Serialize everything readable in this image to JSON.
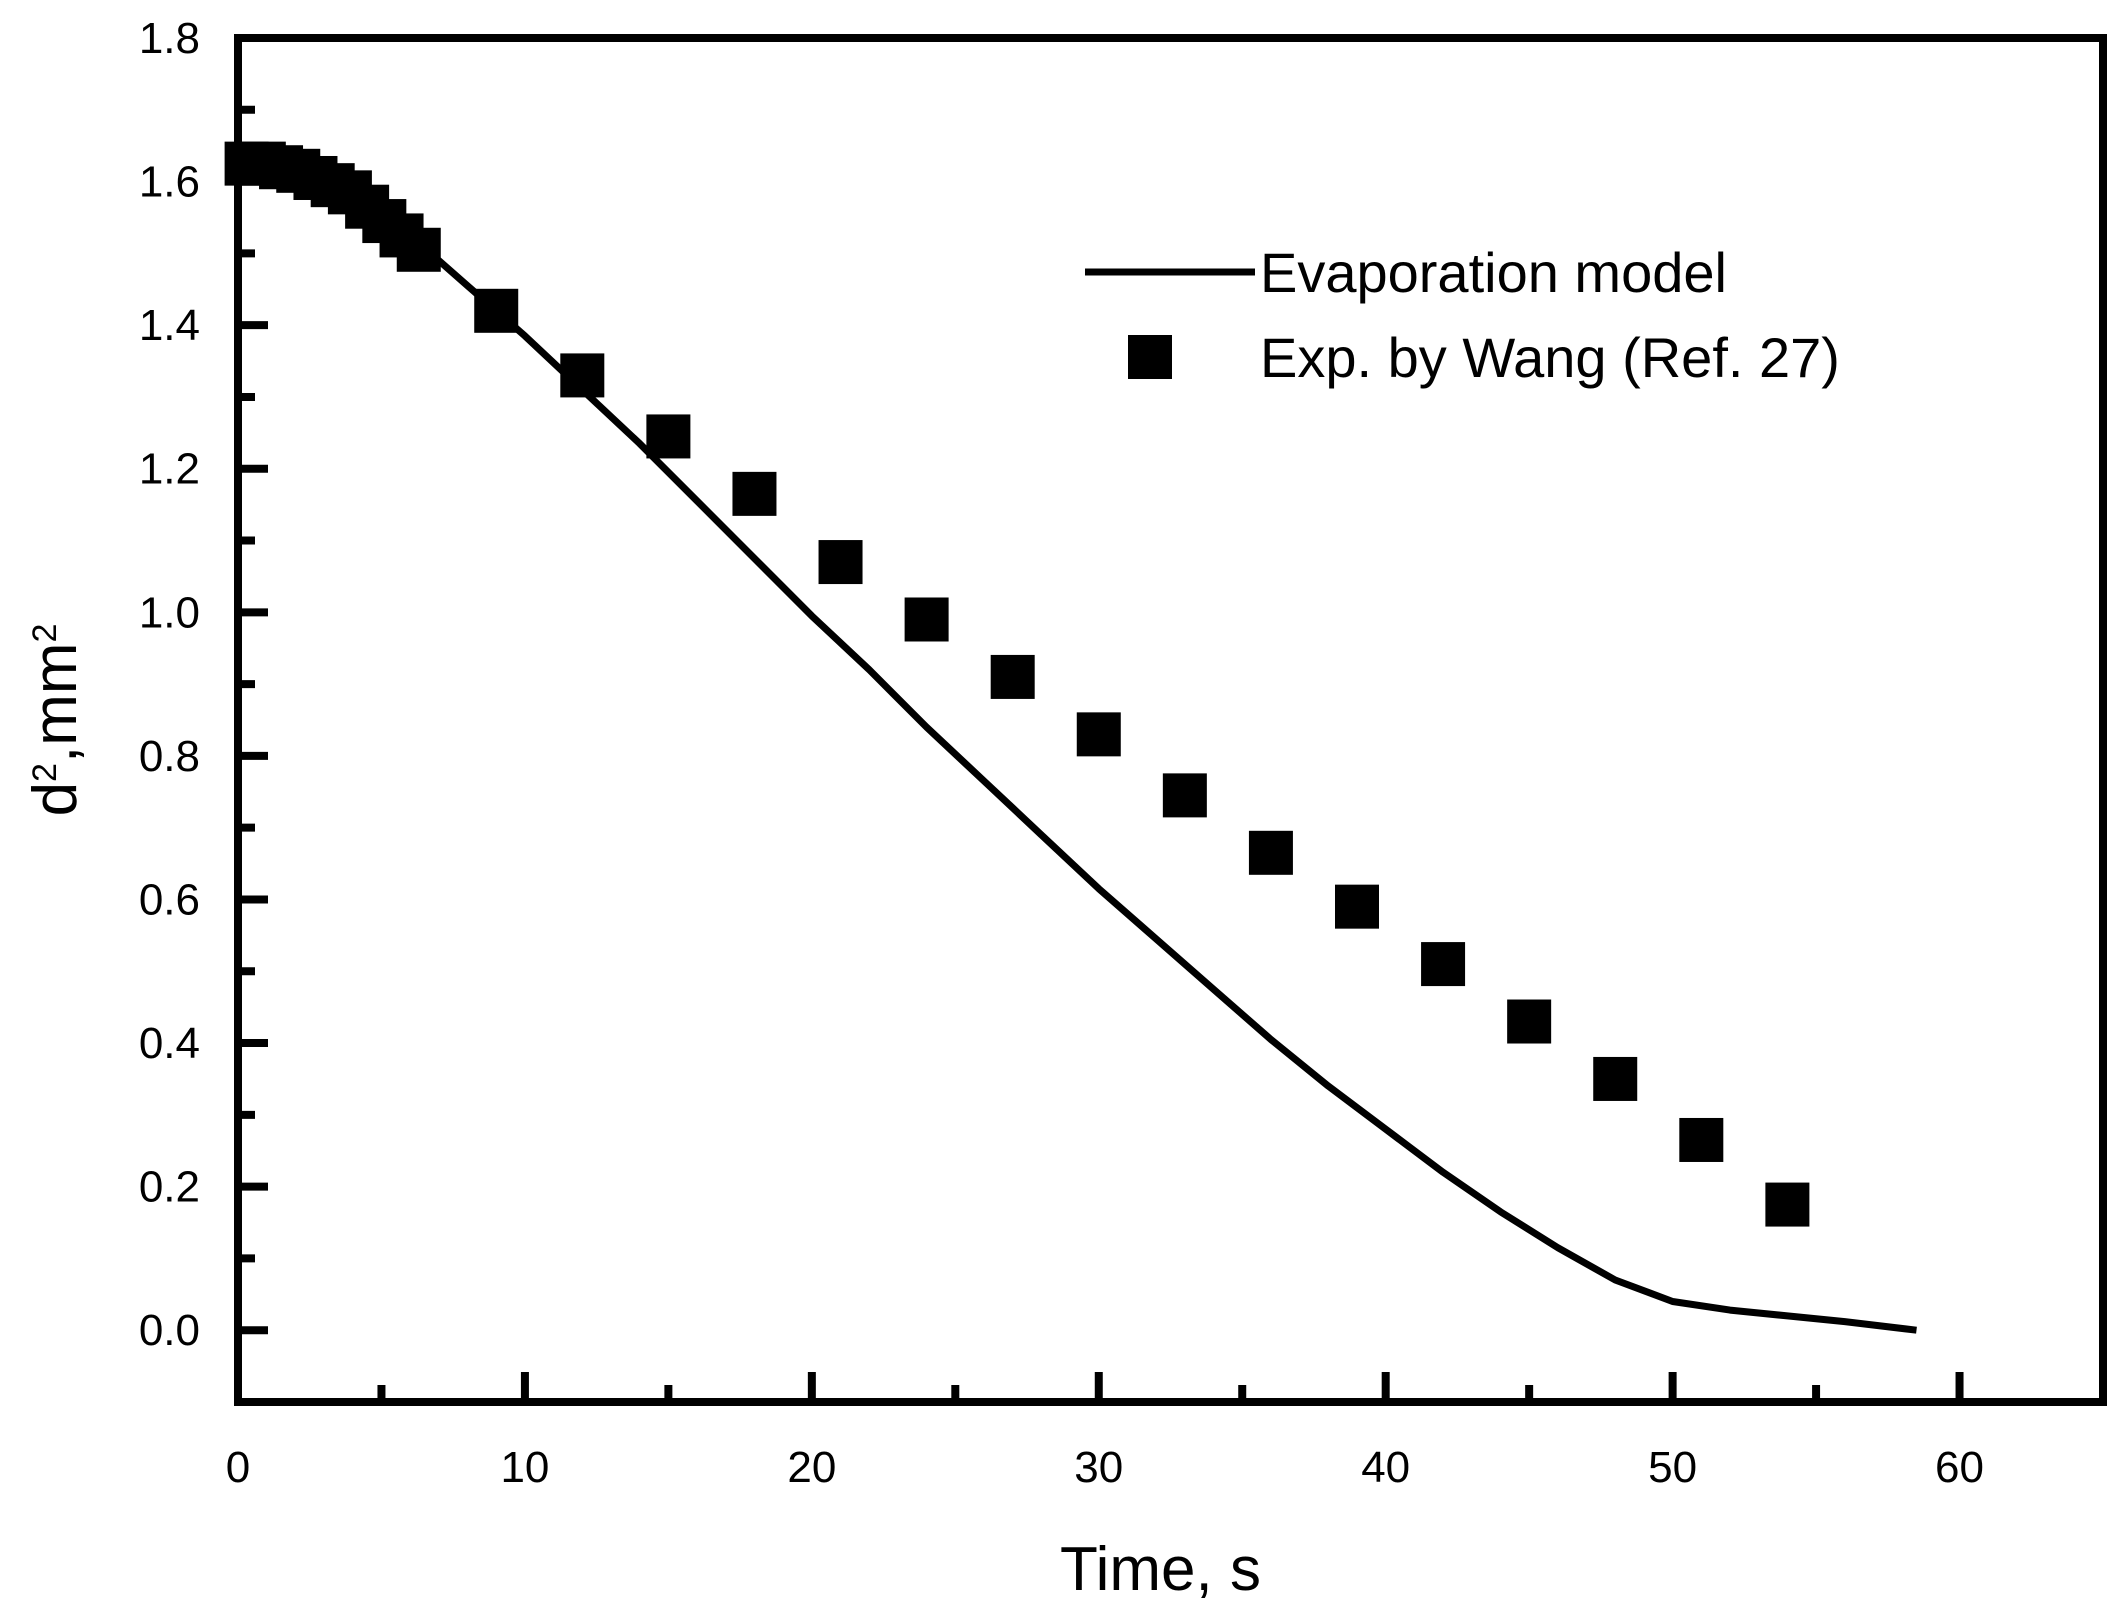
{
  "chart_data": {
    "type": "line+scatter",
    "xlabel": "Time, s",
    "ylabel": {
      "base": "d",
      "sup1": "2",
      "mid": ",mm",
      "sup2": "2"
    },
    "xlim": [
      0,
      65
    ],
    "ylim": [
      -0.1,
      1.8
    ],
    "xticks": [
      0,
      10,
      20,
      30,
      40,
      50,
      60
    ],
    "xtick_labels": [
      "0",
      "10",
      "20",
      "30",
      "40",
      "50",
      "60"
    ],
    "xminor": [
      5,
      15,
      25,
      35,
      45,
      55
    ],
    "yticks": [
      0.0,
      0.2,
      0.4,
      0.6,
      0.8,
      1.0,
      1.2,
      1.4,
      1.6,
      1.8
    ],
    "ytick_labels": [
      "0.0",
      "0.2",
      "0.4",
      "0.6",
      "0.8",
      "1.0",
      "1.2",
      "1.4",
      "1.6",
      "1.8"
    ],
    "yminor": [
      -0.1,
      0.1,
      0.3,
      0.5,
      0.7,
      0.9,
      1.1,
      1.3,
      1.5,
      1.7
    ],
    "grid": false,
    "legend_position": "top-right",
    "series": [
      {
        "name": "Evaporation model",
        "kind": "line",
        "color": "#000000",
        "x": [
          0,
          1,
          2,
          3,
          4,
          5,
          6,
          7,
          8,
          9,
          10,
          12,
          14,
          16,
          18,
          20,
          22,
          24,
          26,
          28,
          30,
          32,
          34,
          36,
          38,
          40,
          42,
          44,
          46,
          48,
          50,
          52,
          54,
          56,
          58.5
        ],
        "y": [
          1.64,
          1.635,
          1.62,
          1.6,
          1.575,
          1.55,
          1.52,
          1.49,
          1.455,
          1.42,
          1.385,
          1.31,
          1.235,
          1.155,
          1.075,
          0.995,
          0.92,
          0.84,
          0.765,
          0.69,
          0.615,
          0.545,
          0.475,
          0.405,
          0.34,
          0.28,
          0.22,
          0.165,
          0.115,
          0.07,
          0.04,
          0.028,
          0.02,
          0.012,
          0.0
        ]
      },
      {
        "name": "Exp. by Wang (Ref. 27)",
        "kind": "scatter",
        "marker": "square",
        "color": "#000000",
        "x": [
          0.3,
          0.9,
          1.5,
          2.1,
          2.7,
          3.3,
          3.9,
          4.5,
          5.1,
          5.7,
          6.3,
          9.0,
          12.0,
          15.0,
          18.0,
          21.0,
          24.0,
          27.0,
          30.0,
          33.0,
          36.0,
          39.0,
          42.0,
          45.0,
          48.0,
          51.0,
          54.0
        ],
        "y": [
          1.625,
          1.625,
          1.62,
          1.615,
          1.605,
          1.595,
          1.585,
          1.565,
          1.545,
          1.525,
          1.505,
          1.42,
          1.33,
          1.245,
          1.165,
          1.07,
          0.99,
          0.91,
          0.83,
          0.745,
          0.665,
          0.59,
          0.51,
          0.43,
          0.35,
          0.265,
          0.175
        ]
      }
    ]
  }
}
